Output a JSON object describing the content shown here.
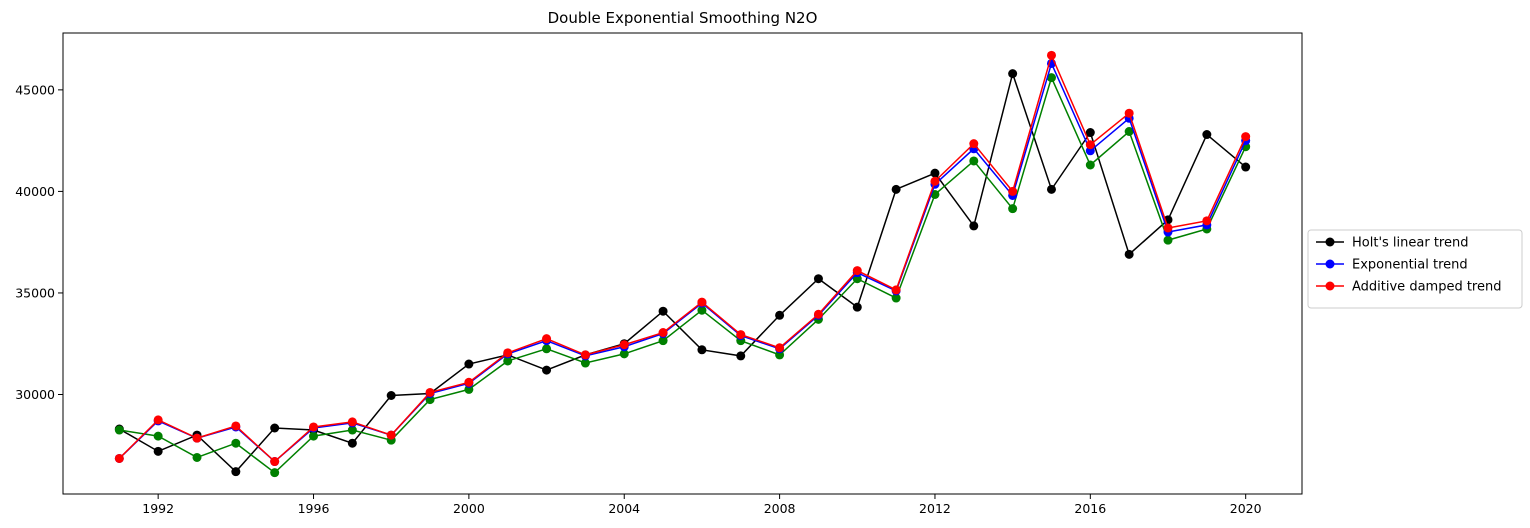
{
  "chart_data": {
    "type": "line",
    "title": "Double Exponential Smoothing N2O",
    "xlabel": "",
    "ylabel": "",
    "x": [
      1991,
      1992,
      1993,
      1994,
      1995,
      1996,
      1997,
      1998,
      1999,
      2000,
      2001,
      2002,
      2003,
      2004,
      2005,
      2006,
      2007,
      2008,
      2009,
      2010,
      2011,
      2012,
      2013,
      2014,
      2015,
      2016,
      2017,
      2018,
      2019,
      2020
    ],
    "xlim": [
      1989.55,
      2021.45
    ],
    "ylim": [
      25100,
      47800
    ],
    "xticks": [
      1992,
      1996,
      2000,
      2004,
      2008,
      2012,
      2016,
      2020
    ],
    "yticks": [
      30000,
      35000,
      40000,
      45000
    ],
    "grid": false,
    "legend_position": "right",
    "series": [
      {
        "name": "Holt's linear trend",
        "color": "#000000",
        "in_legend": true,
        "values": [
          28300,
          27200,
          28000,
          26200,
          28350,
          28250,
          27600,
          29950,
          30050,
          31500,
          31950,
          31200,
          31950,
          32500,
          34100,
          32200,
          31900,
          33900,
          35700,
          34300,
          40100,
          40900,
          38300,
          45800,
          40100,
          42900,
          36900,
          38600,
          42800,
          41200
        ]
      },
      {
        "name": "Exponential trend",
        "color": "#0000ff",
        "in_legend": true,
        "values": [
          26850,
          28700,
          27850,
          28400,
          26700,
          28350,
          28600,
          28000,
          30050,
          30550,
          32000,
          32650,
          31900,
          32350,
          33000,
          34500,
          32900,
          32250,
          33900,
          36000,
          35100,
          40350,
          42100,
          39800,
          46300,
          42000,
          43600,
          38000,
          38350,
          42500
        ]
      },
      {
        "name": "Additive damped trend",
        "color": "#ff0000",
        "in_legend": true,
        "values": [
          26850,
          28750,
          27850,
          28450,
          26700,
          28400,
          28650,
          28000,
          30100,
          30600,
          32050,
          32750,
          31950,
          32450,
          33050,
          34550,
          32950,
          32300,
          33950,
          36100,
          35150,
          40500,
          42350,
          40000,
          46700,
          42300,
          43850,
          38200,
          38550,
          42700
        ]
      },
      {
        "name": "",
        "color": "#008000",
        "in_legend": false,
        "values": [
          28250,
          27950,
          26900,
          27600,
          26150,
          27950,
          28250,
          27750,
          29750,
          30250,
          31650,
          32250,
          31550,
          32000,
          32650,
          34150,
          32650,
          31950,
          33700,
          35700,
          34750,
          39850,
          41500,
          39150,
          45600,
          41300,
          42950,
          37600,
          38150,
          42200
        ]
      }
    ]
  }
}
